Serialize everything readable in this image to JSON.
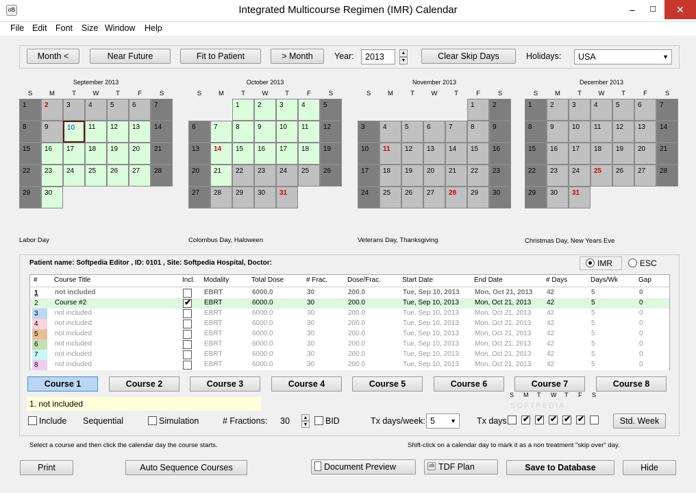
{
  "window": {
    "title": "Integrated Multicourse Regimen (IMR) Calendar",
    "icon_text": "σB",
    "min": "–",
    "max": "☐",
    "close": "✕"
  },
  "menu": [
    "File",
    "Edit",
    "Font",
    "Size",
    "Window",
    "Help"
  ],
  "toolbar": {
    "month_prev": "Month <",
    "near_future": "Near Future",
    "fit_to_patient": "Fit to Patient",
    "month_next": "> Month",
    "year_label": "Year:",
    "year_value": "2013",
    "clear_skip": "Clear Skip Days",
    "holidays_label": "Holidays:",
    "holidays_value": "USA"
  },
  "calendars": [
    {
      "title": "September 2013",
      "holidays": "Labor Day"
    },
    {
      "title": "October 2013",
      "holidays": "Colombus Day, Haloween"
    },
    {
      "title": "November 2013",
      "holidays": "Veterans Day, Thanksgiving"
    },
    {
      "title": "December 2013",
      "holidays": "Christmas Day, New Years Eve"
    }
  ],
  "dow": [
    "S",
    "M",
    "T",
    "W",
    "T",
    "F",
    "S"
  ],
  "patient": {
    "label": "Patient name: Softpedia Editor , ID: 0101 , Site: Softpedia Hospital, Doctor:",
    "imr": "IMR",
    "esc": "ESC"
  },
  "grid": {
    "headers": [
      "#",
      "Course Title",
      "Incl.",
      "Modality",
      "Total Dose",
      "# Frac.",
      "Dose/Frac.",
      "Start Date",
      "End Date",
      "# Days",
      "Days/Wk",
      "Gap"
    ],
    "rows": [
      {
        "num": "1",
        "title": "not included",
        "mod": "EBRT",
        "dose": "6000.0",
        "frac": "30",
        "dpf": "200.0",
        "start": "Tue, Sep 10, 2013",
        "end": "Mon, Oct 21, 2013",
        "days": "42",
        "dw": "5",
        "gap": "0",
        "color": "#ffffff"
      },
      {
        "num": "2",
        "title": "Course #2",
        "mod": "EBRT",
        "dose": "6000.0",
        "frac": "30",
        "dpf": "200.0",
        "start": "Tue, Sep 10, 2013",
        "end": "Mon, Oct 21, 2013",
        "days": "42",
        "dw": "5",
        "gap": "0",
        "color": "#dff6df"
      },
      {
        "num": "3",
        "title": "not included",
        "mod": "EBRT",
        "dose": "6000.0",
        "frac": "30",
        "dpf": "200.0",
        "start": "Tue, Sep 10, 2013",
        "end": "Mon, Oct 21, 2013",
        "days": "42",
        "dw": "5",
        "gap": "0",
        "color": "#bcd8f5"
      },
      {
        "num": "4",
        "title": "not included",
        "mod": "EBRT",
        "dose": "6000.0",
        "frac": "30",
        "dpf": "200.0",
        "start": "Tue, Sep 10, 2013",
        "end": "Mon, Oct 21, 2013",
        "days": "42",
        "dw": "5",
        "gap": "0",
        "color": "#f9d4d8"
      },
      {
        "num": "5",
        "title": "not included",
        "mod": "EBRT",
        "dose": "6000.0",
        "frac": "30",
        "dpf": "200.0",
        "start": "Tue, Sep 10, 2013",
        "end": "Mon, Oct 21, 2013",
        "days": "42",
        "dw": "5",
        "gap": "0",
        "color": "#e8bf98"
      },
      {
        "num": "6",
        "title": "not included",
        "mod": "EBRT",
        "dose": "6000.0",
        "frac": "30",
        "dpf": "200.0",
        "start": "Tue, Sep 10, 2013",
        "end": "Mon, Oct 21, 2013",
        "days": "42",
        "dw": "5",
        "gap": "0",
        "color": "#c4e0b0"
      },
      {
        "num": "7",
        "title": "not included",
        "mod": "EBRT",
        "dose": "6000.0",
        "frac": "30",
        "dpf": "200.0",
        "start": "Tue, Sep 10, 2013",
        "end": "Mon, Oct 21, 2013",
        "days": "42",
        "dw": "5",
        "gap": "0",
        "color": "#c9f6f6"
      },
      {
        "num": "8",
        "title": "not included",
        "mod": "EBRT",
        "dose": "6000.0",
        "frac": "30",
        "dpf": "200.0",
        "start": "Tue, Sep 10, 2013",
        "end": "Mon, Oct 21, 2013",
        "days": "42",
        "dw": "5",
        "gap": "0",
        "color": "#f2cdf2"
      }
    ]
  },
  "courses": [
    "Course 1",
    "Course 2",
    "Course 3",
    "Course 4",
    "Course 5",
    "Course 6",
    "Course 7",
    "Course 8"
  ],
  "course_status": "1. not included",
  "options": {
    "include": "Include",
    "sequential": "Sequential",
    "simulation": "Simulation",
    "fractions_label": "# Fractions:",
    "fractions_value": "30",
    "bid": "BID",
    "tx_week_label": "Tx days/week:",
    "tx_week_value": "5",
    "tx_days_label": "Tx days:",
    "std_week": "Std. Week"
  },
  "hints": {
    "left": "Select a course and then click the calendar day the course starts.",
    "right": "Shift-click on a calendar day to mark it as a non treatment \"skip over\" day."
  },
  "bottom": {
    "print": "Print",
    "auto": "Auto Sequence Courses",
    "doc_preview": "Document Preview",
    "tdf": "TDF Plan",
    "save": "Save to Database",
    "hide": "Hide"
  },
  "watermark": "SOFTPEDIA"
}
